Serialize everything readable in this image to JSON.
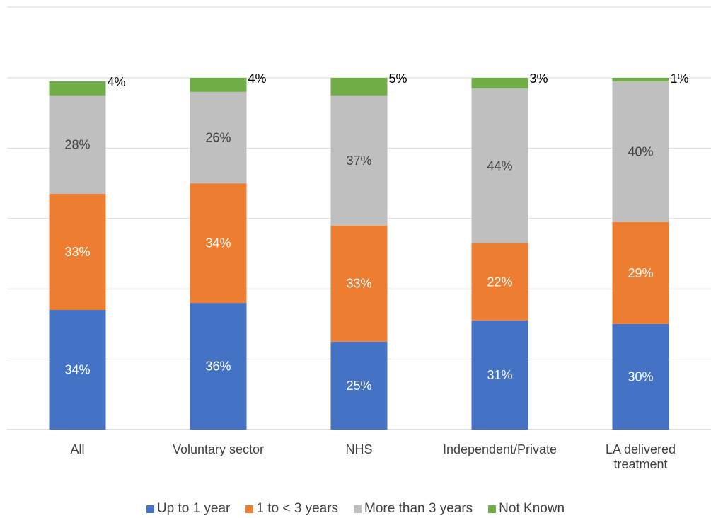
{
  "chart_data": {
    "type": "bar",
    "stacked": true,
    "percent_stacked": true,
    "title": "",
    "xlabel": "",
    "ylabel": "",
    "ylim": [
      0,
      100
    ],
    "grid": true,
    "legend_position": "bottom",
    "categories": [
      [
        "All"
      ],
      [
        "Voluntary sector"
      ],
      [
        "NHS"
      ],
      [
        "Independent/Private"
      ],
      [
        "LA delivered",
        "treatment"
      ]
    ],
    "series": [
      {
        "name": "Up to 1 year",
        "color": "#4472C4",
        "label_color": "#ffffff",
        "values": [
          34,
          36,
          25,
          31,
          30
        ],
        "labels": [
          "34%",
          "36%",
          "25%",
          "31%",
          "30%"
        ]
      },
      {
        "name": "1 to < 3 years",
        "color": "#ED7D31",
        "label_color": "#ffffff",
        "values": [
          33,
          34,
          33,
          22,
          29
        ],
        "labels": [
          "33%",
          "34%",
          "33%",
          "22%",
          "29%"
        ]
      },
      {
        "name": "More than 3 years",
        "color": "#BFBFBF",
        "label_color": "#404040",
        "values": [
          28,
          26,
          37,
          44,
          40
        ],
        "labels": [
          "28%",
          "26%",
          "37%",
          "44%",
          "40%"
        ]
      },
      {
        "name": "Not Known",
        "color": "#70AD47",
        "label_color": "#000000",
        "values": [
          4,
          4,
          5,
          3,
          1
        ],
        "labels": [
          "4%",
          "4%",
          "5%",
          "3%",
          "1%"
        ]
      }
    ]
  }
}
